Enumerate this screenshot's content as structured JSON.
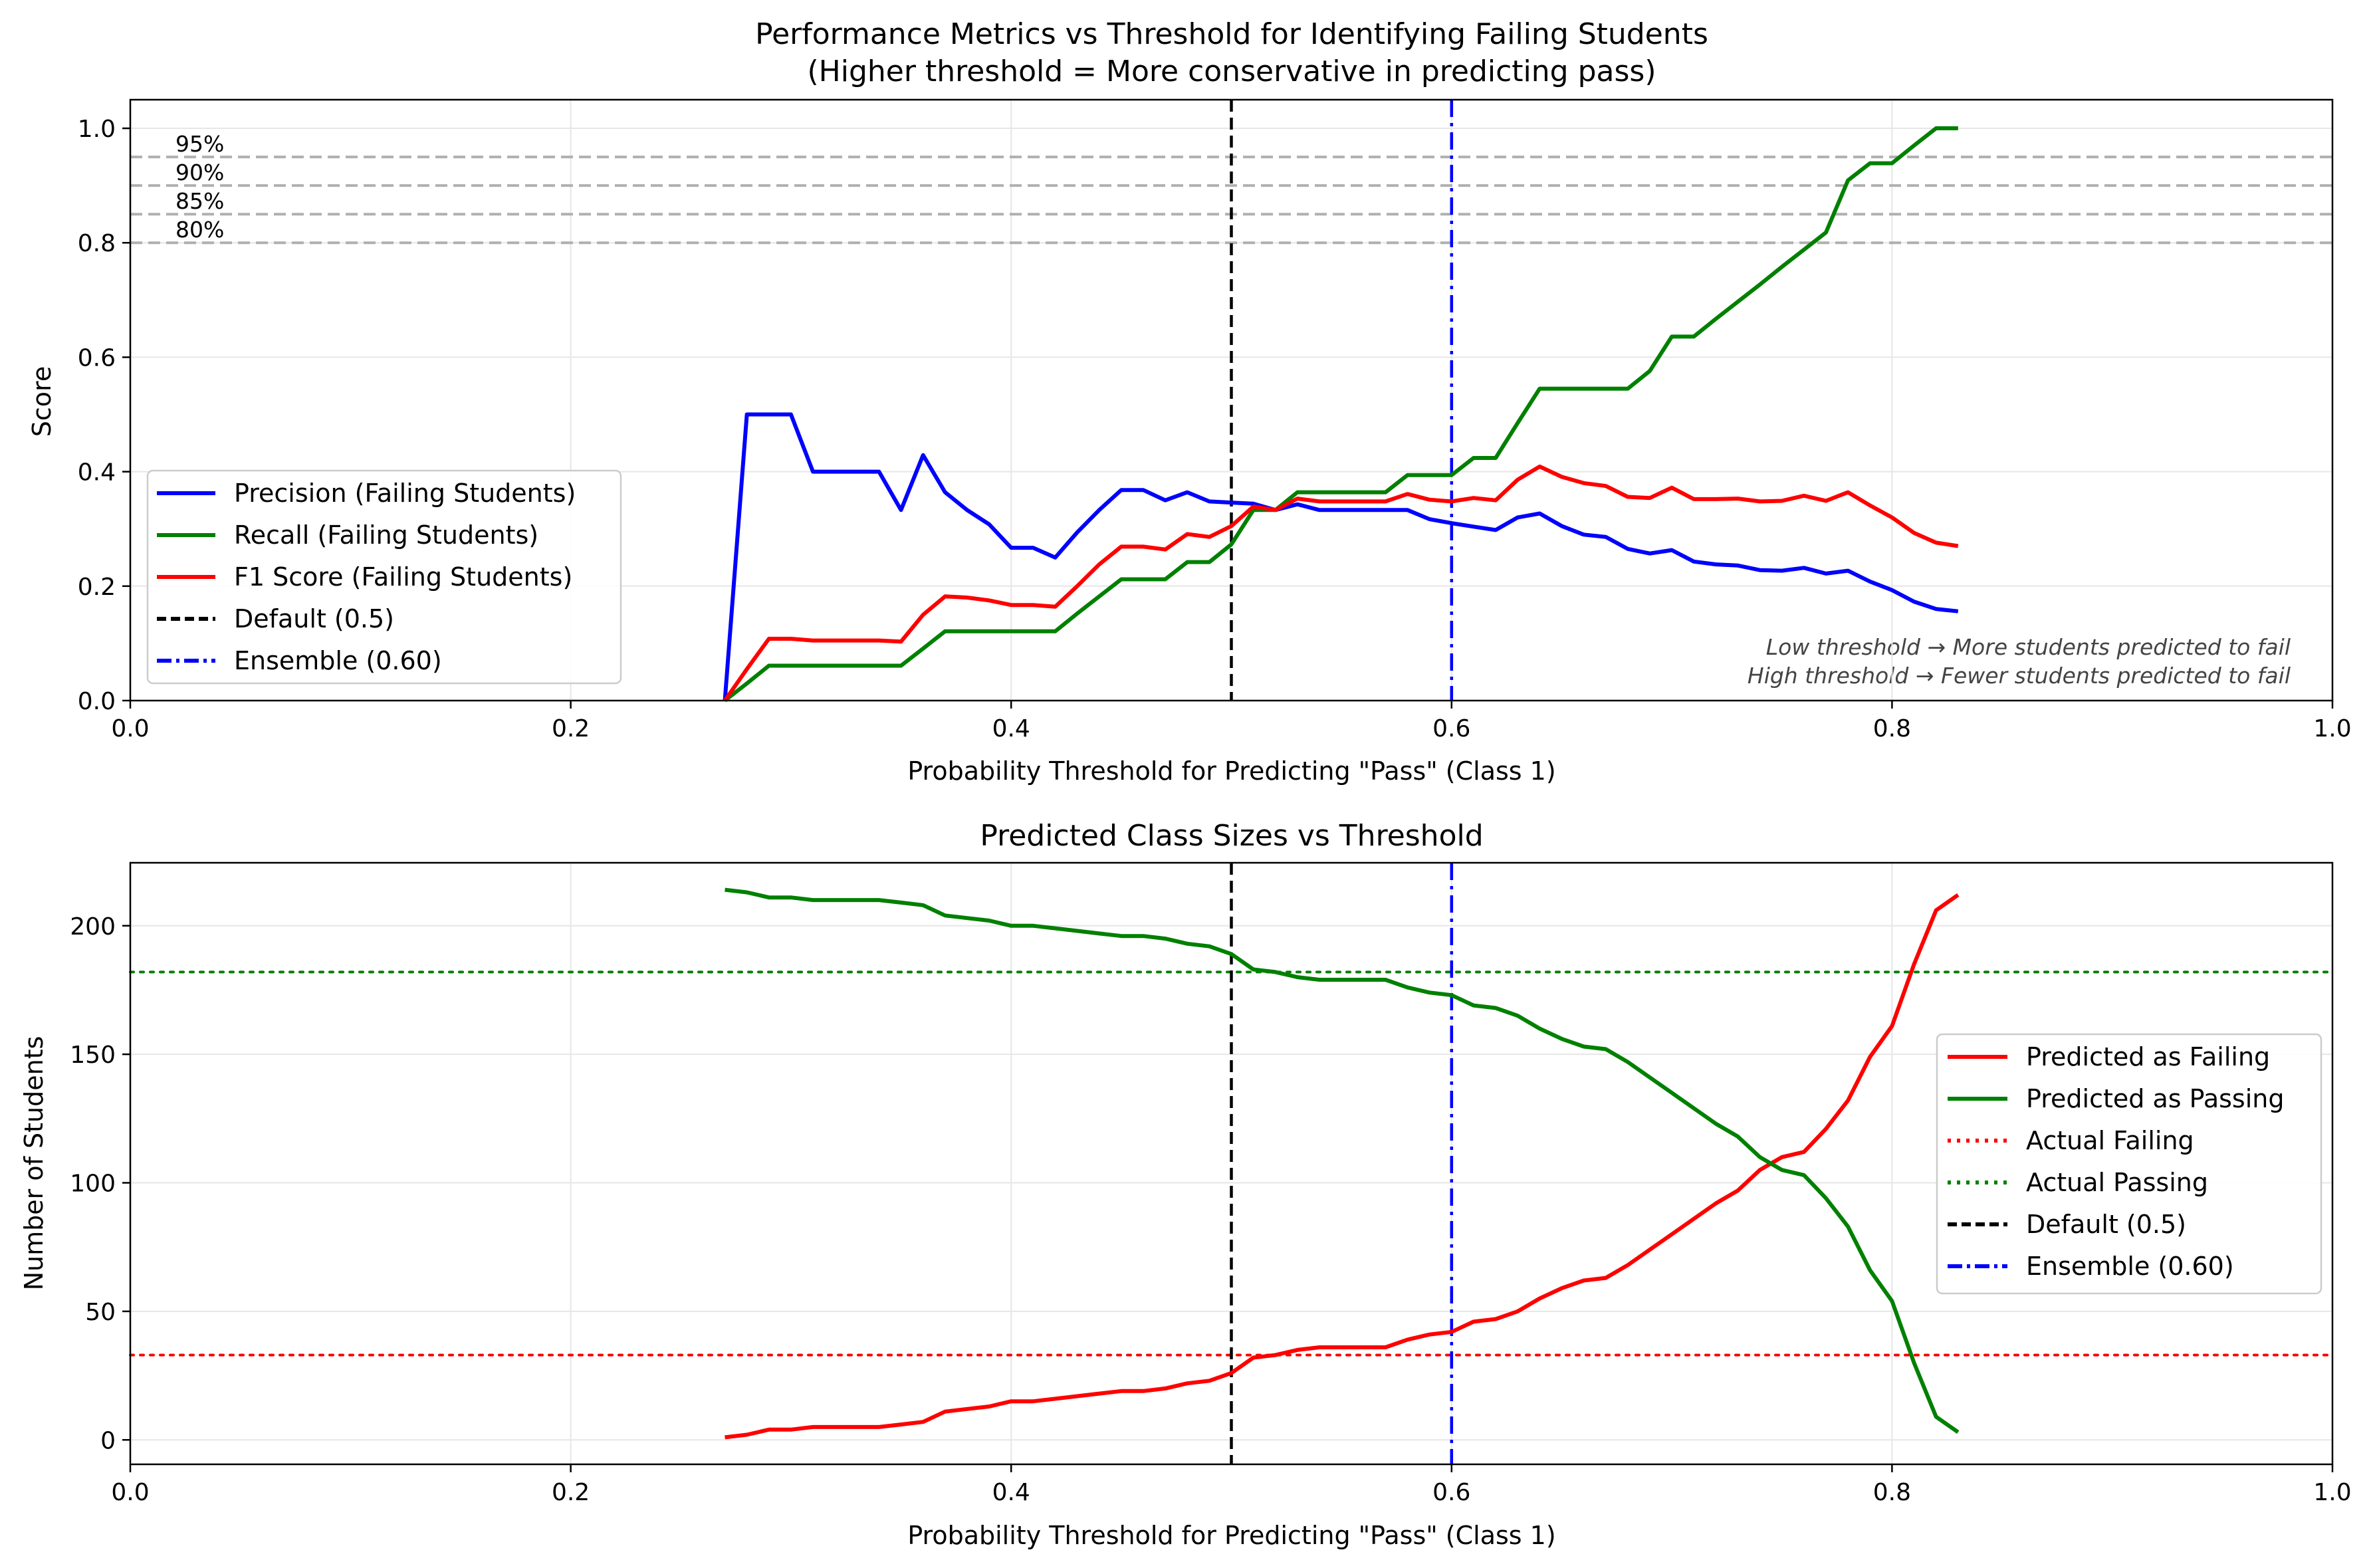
{
  "colors": {
    "precision": "#0000ff",
    "recall": "#008000",
    "f1": "#ff0000",
    "default": "#000000",
    "ensemble": "#0000ff",
    "pred_fail": "#ff0000",
    "pred_pass": "#008000",
    "actual_fail": "#ff0000",
    "actual_pass": "#008000",
    "ref_line": "#b0b0b0",
    "grid": "#e6e6e6"
  },
  "chart_data": [
    {
      "type": "line",
      "title": "Performance Metrics vs Threshold for Identifying Failing Students",
      "subtitle": "(Higher threshold = More conservative in predicting pass)",
      "xlabel": "Probability Threshold for Predicting \"Pass\" (Class 1)",
      "ylabel": "Score",
      "xlim": [
        0,
        1
      ],
      "ylim": [
        0,
        1.05
      ],
      "grid": true,
      "legend_position": "lower-left",
      "x_ticks": [
        0,
        0.2,
        0.4,
        0.6,
        0.8,
        1.0
      ],
      "x_tick_labels": [
        "0.0",
        "0.2",
        "0.4",
        "0.6",
        "0.8",
        "1.0"
      ],
      "y_ticks": [
        0,
        0.2,
        0.4,
        0.6,
        0.8,
        1.0
      ],
      "y_tick_labels": [
        "0.0",
        "0.2",
        "0.4",
        "0.6",
        "0.8",
        "1.0"
      ],
      "x": [
        0.27,
        0.28,
        0.29,
        0.3,
        0.31,
        0.32,
        0.33,
        0.34,
        0.35,
        0.36,
        0.37,
        0.38,
        0.39,
        0.4,
        0.41,
        0.42,
        0.43,
        0.44,
        0.45,
        0.46,
        0.47,
        0.48,
        0.49,
        0.5,
        0.51,
        0.52,
        0.53,
        0.54,
        0.55,
        0.56,
        0.57,
        0.58,
        0.59,
        0.6,
        0.61,
        0.62,
        0.63,
        0.64,
        0.65,
        0.66,
        0.67,
        0.68,
        0.69,
        0.7,
        0.71,
        0.72,
        0.73,
        0.74,
        0.75,
        0.76,
        0.77,
        0.78,
        0.79,
        0.8,
        0.81,
        0.82,
        0.83
      ],
      "series": [
        {
          "name": "Precision (Failing Students)",
          "color_key": "precision",
          "dash": "solid",
          "values": [
            0,
            0.5,
            0.5,
            0.5,
            0.4,
            0.4,
            0.4,
            0.4,
            0.333,
            0.429,
            0.364,
            0.333,
            0.308,
            0.267,
            0.267,
            0.25,
            0.294,
            0.333,
            0.368,
            0.368,
            0.35,
            0.364,
            0.348,
            0.346,
            0.344,
            0.333,
            0.343,
            0.333,
            0.333,
            0.333,
            0.333,
            0.333,
            0.317,
            0.31,
            0.304,
            0.298,
            0.32,
            0.327,
            0.305,
            0.29,
            0.286,
            0.265,
            0.257,
            0.263,
            0.243,
            0.238,
            0.236,
            0.228,
            0.227,
            0.232,
            0.222,
            0.227,
            0.208,
            0.193,
            0.173,
            0.16,
            0.156
          ]
        },
        {
          "name": "Recall (Failing Students)",
          "color_key": "recall",
          "dash": "solid",
          "values": [
            0,
            0.03,
            0.061,
            0.061,
            0.061,
            0.061,
            0.061,
            0.061,
            0.061,
            0.091,
            0.121,
            0.121,
            0.121,
            0.121,
            0.121,
            0.121,
            0.152,
            0.182,
            0.212,
            0.212,
            0.212,
            0.242,
            0.242,
            0.273,
            0.333,
            0.333,
            0.364,
            0.364,
            0.364,
            0.364,
            0.364,
            0.394,
            0.394,
            0.394,
            0.424,
            0.424,
            0.485,
            0.545,
            0.545,
            0.545,
            0.545,
            0.545,
            0.576,
            0.636,
            0.636,
            0.667,
            0.697,
            0.727,
            0.758,
            0.788,
            0.818,
            0.909,
            0.939,
            0.939,
            0.97,
            1.0,
            1.0
          ]
        },
        {
          "name": "F1 Score (Failing Students)",
          "color_key": "f1",
          "dash": "solid",
          "values": [
            0,
            0.055,
            0.108,
            0.108,
            0.105,
            0.105,
            0.105,
            0.105,
            0.103,
            0.15,
            0.182,
            0.18,
            0.175,
            0.167,
            0.167,
            0.164,
            0.2,
            0.238,
            0.269,
            0.269,
            0.264,
            0.291,
            0.286,
            0.305,
            0.339,
            0.333,
            0.353,
            0.348,
            0.348,
            0.348,
            0.348,
            0.361,
            0.351,
            0.348,
            0.354,
            0.35,
            0.386,
            0.409,
            0.391,
            0.38,
            0.375,
            0.356,
            0.354,
            0.372,
            0.352,
            0.352,
            0.353,
            0.348,
            0.349,
            0.358,
            0.349,
            0.364,
            0.341,
            0.32,
            0.293,
            0.276,
            0.27
          ]
        }
      ],
      "reference_lines": [
        {
          "type": "hline",
          "y": 0.95,
          "label": "95%",
          "color_key": "ref_line",
          "dash": "dashed"
        },
        {
          "type": "hline",
          "y": 0.9,
          "label": "90%",
          "color_key": "ref_line",
          "dash": "dashed"
        },
        {
          "type": "hline",
          "y": 0.85,
          "label": "85%",
          "color_key": "ref_line",
          "dash": "dashed"
        },
        {
          "type": "hline",
          "y": 0.8,
          "label": "80%",
          "color_key": "ref_line",
          "dash": "dashed"
        },
        {
          "type": "vline",
          "x": 0.5,
          "label": "Default (0.5)",
          "color_key": "default",
          "dash": "dashed"
        },
        {
          "type": "vline",
          "x": 0.6,
          "label": "Ensemble (0.60)",
          "color_key": "ensemble",
          "dash": "dashdot"
        }
      ],
      "annotations": [
        "Low threshold → More students predicted to fail",
        "High threshold → Fewer students predicted to fail"
      ],
      "legend": [
        {
          "label": "Precision (Failing Students)",
          "color_key": "precision",
          "dash": "solid"
        },
        {
          "label": "Recall (Failing Students)",
          "color_key": "recall",
          "dash": "solid"
        },
        {
          "label": "F1 Score (Failing Students)",
          "color_key": "f1",
          "dash": "solid"
        },
        {
          "label": "Default (0.5)",
          "color_key": "default",
          "dash": "dashed"
        },
        {
          "label": "Ensemble (0.60)",
          "color_key": "ensemble",
          "dash": "dashdot"
        }
      ]
    },
    {
      "type": "line",
      "title": "Predicted Class Sizes vs Threshold",
      "xlabel": "Probability Threshold for Predicting \"Pass\" (Class 1)",
      "ylabel": "Number of Students",
      "xlim": [
        0,
        1
      ],
      "ylim": [
        -9.5,
        224.5
      ],
      "grid": true,
      "legend_position": "center-right",
      "x_ticks": [
        0,
        0.2,
        0.4,
        0.6,
        0.8,
        1.0
      ],
      "x_tick_labels": [
        "0.0",
        "0.2",
        "0.4",
        "0.6",
        "0.8",
        "1.0"
      ],
      "y_ticks": [
        0,
        50,
        100,
        150,
        200
      ],
      "y_tick_labels": [
        "0",
        "50",
        "100",
        "150",
        "200"
      ],
      "x": [
        0.27,
        0.28,
        0.29,
        0.3,
        0.31,
        0.32,
        0.33,
        0.34,
        0.35,
        0.36,
        0.37,
        0.38,
        0.39,
        0.4,
        0.41,
        0.42,
        0.43,
        0.44,
        0.45,
        0.46,
        0.47,
        0.48,
        0.49,
        0.5,
        0.51,
        0.52,
        0.53,
        0.54,
        0.55,
        0.56,
        0.57,
        0.58,
        0.59,
        0.6,
        0.61,
        0.62,
        0.63,
        0.64,
        0.65,
        0.66,
        0.67,
        0.68,
        0.69,
        0.7,
        0.71,
        0.72,
        0.73,
        0.74,
        0.75,
        0.76,
        0.77,
        0.78,
        0.79,
        0.8,
        0.81,
        0.82,
        0.83
      ],
      "series": [
        {
          "name": "Predicted as Failing",
          "color_key": "pred_fail",
          "dash": "solid",
          "values": [
            1,
            2,
            4,
            4,
            5,
            5,
            5,
            5,
            6,
            7,
            11,
            12,
            13,
            15,
            15,
            16,
            17,
            18,
            19,
            19,
            20,
            22,
            23,
            26,
            32,
            33,
            35,
            36,
            36,
            36,
            36,
            39,
            41,
            42,
            46,
            47,
            50,
            55,
            59,
            62,
            63,
            68,
            74,
            80,
            86,
            92,
            97,
            105,
            110,
            112,
            121,
            132,
            149,
            161,
            185,
            206,
            212
          ]
        },
        {
          "name": "Predicted as Passing",
          "color_key": "pred_pass",
          "dash": "solid",
          "values": [
            214,
            213,
            211,
            211,
            210,
            210,
            210,
            210,
            209,
            208,
            204,
            203,
            202,
            200,
            200,
            199,
            198,
            197,
            196,
            196,
            195,
            193,
            192,
            189,
            183,
            182,
            180,
            179,
            179,
            179,
            179,
            176,
            174,
            173,
            169,
            168,
            165,
            160,
            156,
            153,
            152,
            147,
            141,
            135,
            129,
            123,
            118,
            110,
            105,
            103,
            94,
            83,
            66,
            54,
            30,
            9,
            3
          ]
        }
      ],
      "reference_lines": [
        {
          "type": "hline",
          "y": 33,
          "label": "Actual Failing",
          "color_key": "actual_fail",
          "dash": "dotted"
        },
        {
          "type": "hline",
          "y": 182,
          "label": "Actual Passing",
          "color_key": "actual_pass",
          "dash": "dotted"
        },
        {
          "type": "vline",
          "x": 0.5,
          "label": "Default (0.5)",
          "color_key": "default",
          "dash": "dashed"
        },
        {
          "type": "vline",
          "x": 0.6,
          "label": "Ensemble (0.60)",
          "color_key": "ensemble",
          "dash": "dashdot"
        }
      ],
      "legend": [
        {
          "label": "Predicted as Failing",
          "color_key": "pred_fail",
          "dash": "solid"
        },
        {
          "label": "Predicted as Passing",
          "color_key": "pred_pass",
          "dash": "solid"
        },
        {
          "label": "Actual Failing",
          "color_key": "actual_fail",
          "dash": "dotted"
        },
        {
          "label": "Actual Passing",
          "color_key": "actual_pass",
          "dash": "dotted"
        },
        {
          "label": "Default (0.5)",
          "color_key": "default",
          "dash": "dashed"
        },
        {
          "label": "Ensemble (0.60)",
          "color_key": "ensemble",
          "dash": "dashdot"
        }
      ]
    }
  ]
}
